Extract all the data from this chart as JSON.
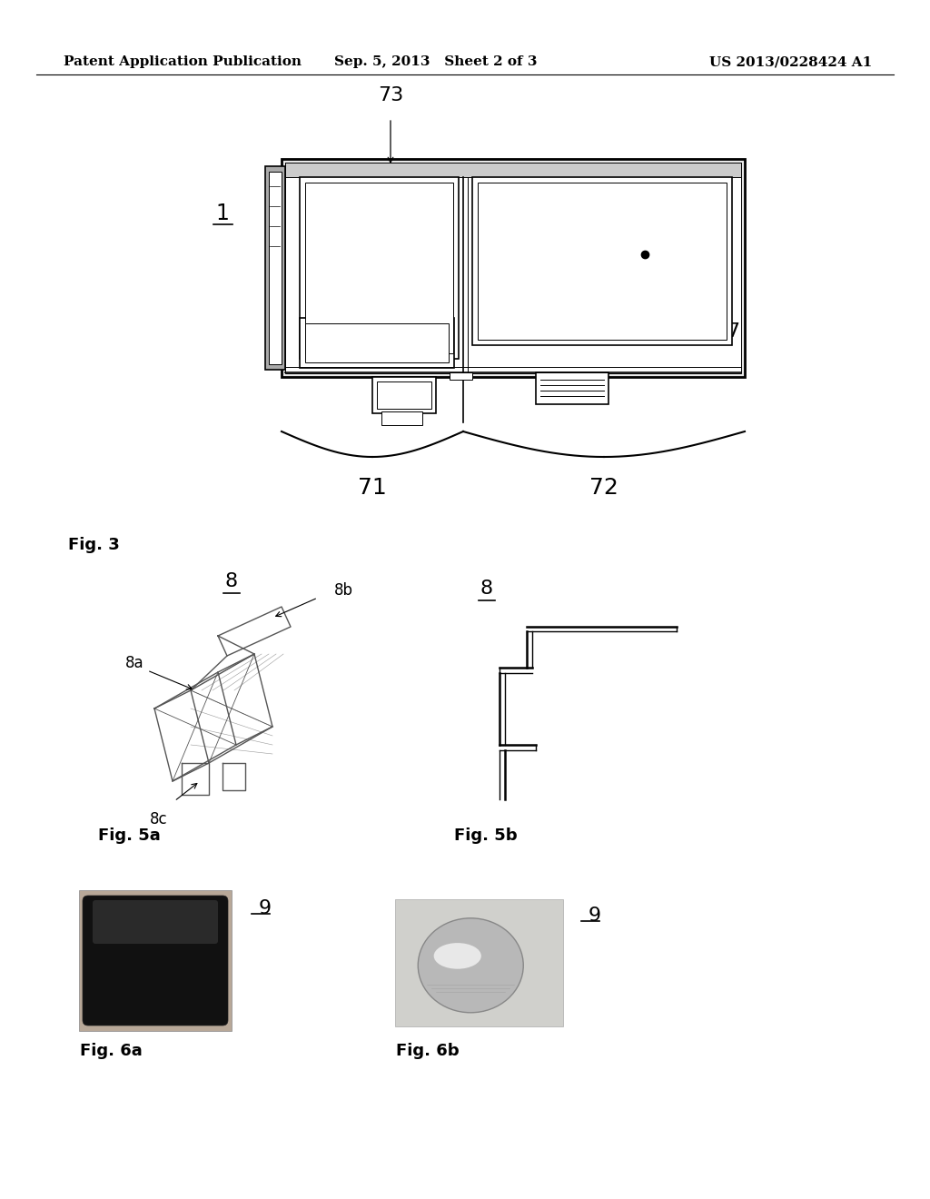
{
  "bg_color": "#ffffff",
  "header_left": "Patent Application Publication",
  "header_center": "Sep. 5, 2013   Sheet 2 of 3",
  "header_right": "US 2013/0228424 A1",
  "header_fontsize": 11,
  "fig3_label": "Fig. 3",
  "fig5a_label": "Fig. 5a",
  "fig5b_label": "Fig. 5b",
  "fig6a_label": "Fig. 6a",
  "fig6b_label": "Fig. 6b",
  "label_fontsize": 13
}
